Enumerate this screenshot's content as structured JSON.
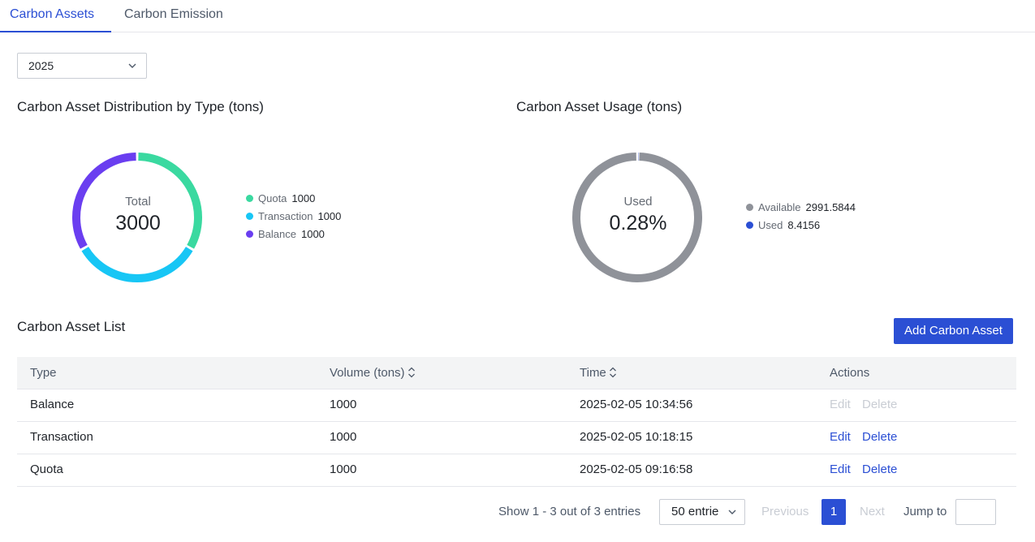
{
  "tabs": [
    {
      "label": "Carbon Assets",
      "active": true
    },
    {
      "label": "Carbon Emission",
      "active": false
    }
  ],
  "filter": {
    "year": "2025",
    "icon": "chevron-down-icon"
  },
  "distribution": {
    "title": "Carbon Asset Distribution by Type (tons)",
    "center_label": "Total",
    "center_value": "3000",
    "legend": [
      {
        "name": "Quota",
        "value": "1000",
        "color": "#3ad9a0"
      },
      {
        "name": "Transaction",
        "value": "1000",
        "color": "#17c6f5"
      },
      {
        "name": "Balance",
        "value": "1000",
        "color": "#6a3ef0"
      }
    ]
  },
  "usage": {
    "title": "Carbon Asset Usage (tons)",
    "center_label": "Used",
    "center_value": "0.28%",
    "legend": [
      {
        "name": "Available",
        "value": "2991.5844",
        "color": "#8f9299"
      },
      {
        "name": "Used",
        "value": "8.4156",
        "color": "#2b4fd4"
      }
    ]
  },
  "chart_data": [
    {
      "type": "pie",
      "title": "Carbon Asset Distribution by Type (tons)",
      "categories": [
        "Quota",
        "Transaction",
        "Balance"
      ],
      "values": [
        1000,
        1000,
        1000
      ]
    },
    {
      "type": "pie",
      "title": "Carbon Asset Usage (tons)",
      "categories": [
        "Available",
        "Used"
      ],
      "values": [
        2991.5844,
        8.4156
      ]
    }
  ],
  "list": {
    "title": "Carbon Asset List",
    "add_button": "Add Carbon Asset",
    "columns": {
      "type": "Type",
      "volume": "Volume (tons)",
      "time": "Time",
      "actions": "Actions"
    },
    "rows": [
      {
        "type": "Balance",
        "volume": "1000",
        "time": "2025-02-05 10:34:56",
        "edit": "Edit",
        "delete": "Delete",
        "actions_enabled": false
      },
      {
        "type": "Transaction",
        "volume": "1000",
        "time": "2025-02-05 10:18:15",
        "edit": "Edit",
        "delete": "Delete",
        "actions_enabled": true
      },
      {
        "type": "Quota",
        "volume": "1000",
        "time": "2025-02-05 09:16:58",
        "edit": "Edit",
        "delete": "Delete",
        "actions_enabled": true
      }
    ]
  },
  "pagination": {
    "summary": "Show 1 - 3 out of 3 entries",
    "page_size": "50 entrie",
    "previous": "Previous",
    "current_page": "1",
    "next": "Next",
    "jump_label": "Jump to",
    "jump_value": ""
  }
}
